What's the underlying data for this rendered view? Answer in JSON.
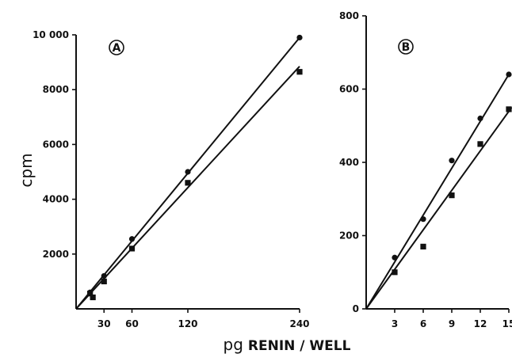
{
  "chart_data": [
    {
      "type": "scatter",
      "panel_label": "A",
      "ylabel": "cpm",
      "xlim": [
        0,
        240
      ],
      "ylim": [
        0,
        10000
      ],
      "x_ticks": [
        30,
        60,
        120,
        240
      ],
      "x_tick_labels": [
        "30",
        "60",
        "120",
        "240"
      ],
      "y_ticks": [
        2000,
        4000,
        6000,
        8000,
        10000
      ],
      "y_tick_labels": [
        "2000",
        "4000",
        "6000",
        "8000",
        "10 000"
      ],
      "series": [
        {
          "marker": "circle",
          "points": [
            [
              15,
              600
            ],
            [
              30,
              1200
            ],
            [
              60,
              2550
            ],
            [
              120,
              5000
            ],
            [
              240,
              9900
            ]
          ],
          "fit_line": [
            [
              0,
              0
            ],
            [
              240,
              9900
            ]
          ]
        },
        {
          "marker": "square",
          "points": [
            [
              15,
              560
            ],
            [
              18,
              420
            ],
            [
              30,
              1000
            ],
            [
              60,
              2200
            ],
            [
              120,
              4600
            ],
            [
              240,
              8650
            ]
          ],
          "fit_line": [
            [
              0,
              0
            ],
            [
              240,
              8850
            ]
          ]
        }
      ]
    },
    {
      "type": "scatter",
      "panel_label": "B",
      "xlim": [
        0,
        15
      ],
      "ylim": [
        0,
        800
      ],
      "x_ticks": [
        3,
        6,
        9,
        12,
        15
      ],
      "x_tick_labels": [
        "3",
        "6",
        "9",
        "12",
        "15"
      ],
      "y_ticks": [
        0,
        200,
        400,
        600,
        800
      ],
      "y_tick_labels": [
        "0",
        "200",
        "400",
        "600",
        "800"
      ],
      "series": [
        {
          "marker": "circle",
          "points": [
            [
              3,
              140
            ],
            [
              6,
              245
            ],
            [
              9,
              405
            ],
            [
              12,
              520
            ],
            [
              15,
              640
            ]
          ],
          "fit_line": [
            [
              0,
              0
            ],
            [
              15,
              640
            ]
          ]
        },
        {
          "marker": "square",
          "points": [
            [
              3,
              100
            ],
            [
              6,
              170
            ],
            [
              9,
              310
            ],
            [
              12,
              450
            ],
            [
              15,
              545
            ]
          ],
          "fit_line": [
            [
              0,
              0
            ],
            [
              15.3,
              550
            ]
          ]
        }
      ]
    }
  ],
  "xlabel": {
    "prefix": "pg",
    "main": "RENIN / WELL"
  }
}
